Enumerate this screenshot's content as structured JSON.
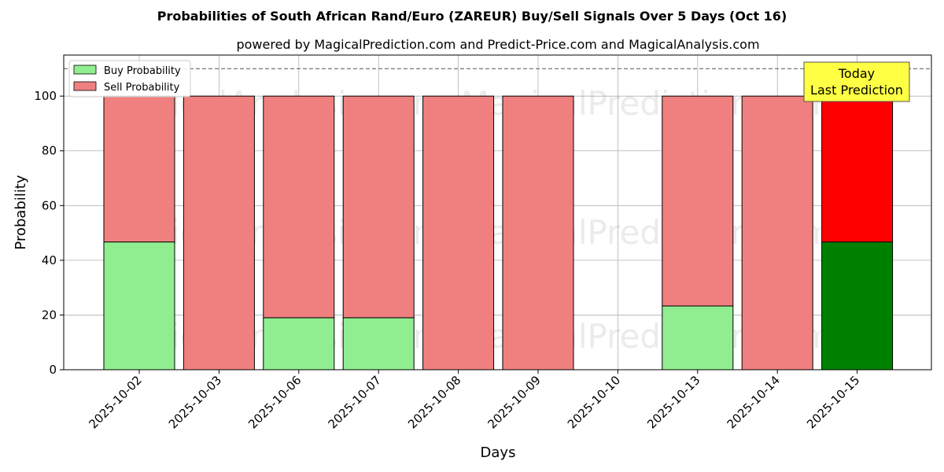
{
  "chart_data": {
    "type": "bar",
    "stacked": true,
    "title": "Probabilities of South African Rand/Euro (ZAREUR) Buy/Sell Signals Over 5 Days (Oct 16)",
    "subtitle": "powered by MagicalPrediction.com and Predict-Price.com and MagicalAnalysis.com",
    "xlabel": "Days",
    "ylabel": "Probability",
    "ylim": [
      0,
      115
    ],
    "yticks": [
      0,
      20,
      40,
      60,
      80,
      100
    ],
    "grid": true,
    "legend_position": "top-left",
    "reference_line": 110,
    "categories": [
      "2025-10-02",
      "2025-10-03",
      "2025-10-06",
      "2025-10-07",
      "2025-10-08",
      "2025-10-09",
      "2025-10-10",
      "2025-10-13",
      "2025-10-14",
      "2025-10-15"
    ],
    "series": [
      {
        "name": "Buy Probability",
        "color": "#90ee90",
        "highlight_color": "#008000",
        "values": [
          46.7,
          0,
          19,
          19,
          0,
          0,
          null,
          23.3,
          0,
          46.7
        ]
      },
      {
        "name": "Sell Probability",
        "color": "#f08080",
        "highlight_color": "#ff0000",
        "values": [
          53.3,
          100,
          81,
          81,
          100,
          100,
          null,
          76.7,
          100,
          53.3
        ]
      }
    ],
    "highlight_category": "2025-10-15",
    "annotation": {
      "line1": "Today",
      "line2": "Last Prediction",
      "color": "#ffff44"
    },
    "watermarks": [
      "MagicalAnalysis.com",
      "MagicalPrediction.com"
    ]
  }
}
